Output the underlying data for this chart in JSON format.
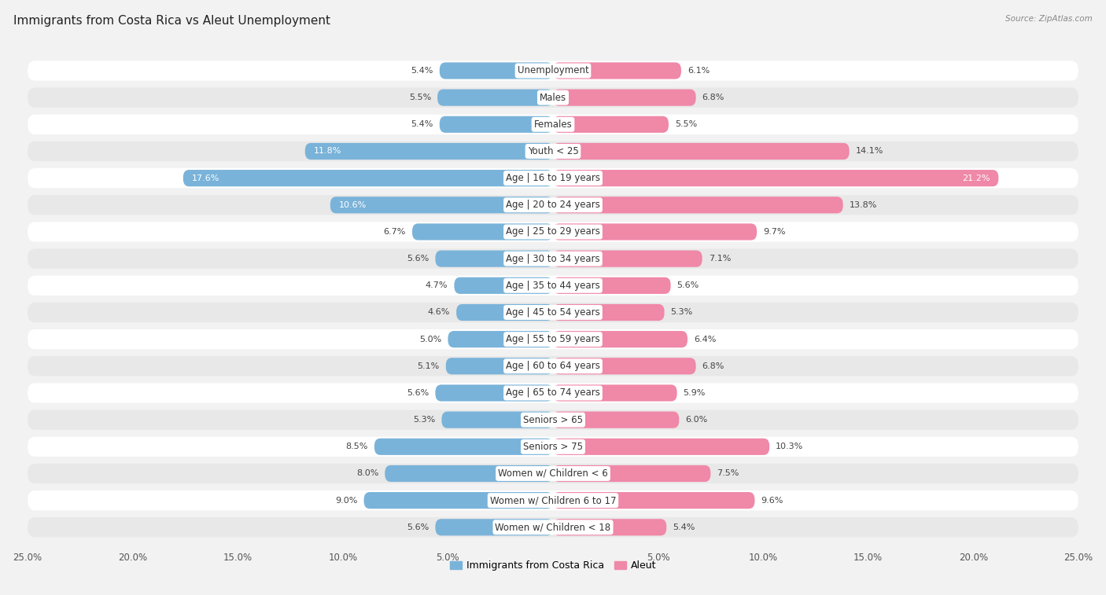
{
  "title": "Immigrants from Costa Rica vs Aleut Unemployment",
  "source": "Source: ZipAtlas.com",
  "categories": [
    "Unemployment",
    "Males",
    "Females",
    "Youth < 25",
    "Age | 16 to 19 years",
    "Age | 20 to 24 years",
    "Age | 25 to 29 years",
    "Age | 30 to 34 years",
    "Age | 35 to 44 years",
    "Age | 45 to 54 years",
    "Age | 55 to 59 years",
    "Age | 60 to 64 years",
    "Age | 65 to 74 years",
    "Seniors > 65",
    "Seniors > 75",
    "Women w/ Children < 6",
    "Women w/ Children 6 to 17",
    "Women w/ Children < 18"
  ],
  "left_values": [
    5.4,
    5.5,
    5.4,
    11.8,
    17.6,
    10.6,
    6.7,
    5.6,
    4.7,
    4.6,
    5.0,
    5.1,
    5.6,
    5.3,
    8.5,
    8.0,
    9.0,
    5.6
  ],
  "right_values": [
    6.1,
    6.8,
    5.5,
    14.1,
    21.2,
    13.8,
    9.7,
    7.1,
    5.6,
    5.3,
    6.4,
    6.8,
    5.9,
    6.0,
    10.3,
    7.5,
    9.6,
    5.4
  ],
  "left_color": "#7ab3d9",
  "right_color": "#f088a8",
  "left_label": "Immigrants from Costa Rica",
  "right_label": "Aleut",
  "axis_max": 25.0,
  "bg_color": "#f2f2f2",
  "row_color_even": "#ffffff",
  "row_color_odd": "#e8e8e8",
  "title_fontsize": 11,
  "label_fontsize": 8.5,
  "value_fontsize": 8,
  "tick_fontsize": 8.5
}
